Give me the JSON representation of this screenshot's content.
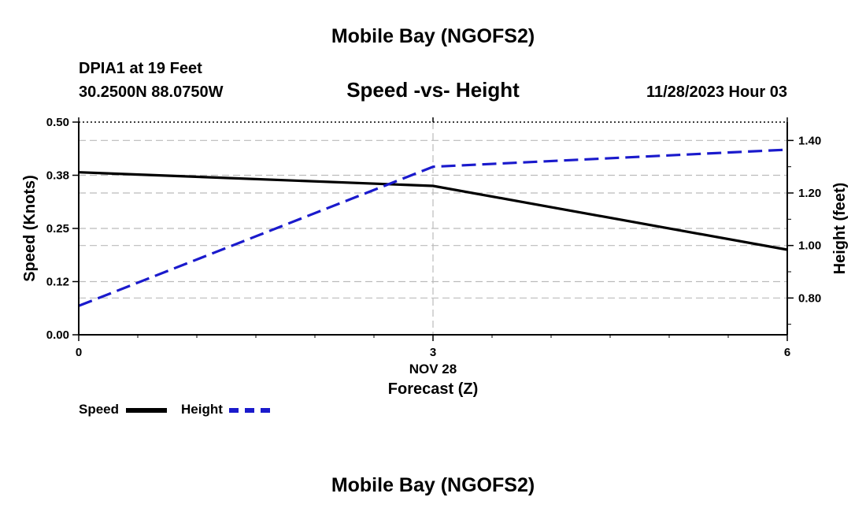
{
  "header": {
    "main_title": "Mobile Bay (NGOFS2)",
    "station": "DPIA1 at 19 Feet",
    "coords": "30.2500N  88.0750W",
    "subtitle": "Speed -vs- Height",
    "datetime": "11/28/2023 Hour 03"
  },
  "footer": {
    "main_title": "Mobile Bay (NGOFS2)"
  },
  "legend": {
    "speed_label": "Speed",
    "height_label": "Height"
  },
  "colors": {
    "speed": "#000000",
    "height": "#1a1acc",
    "grid": "#bbbbbb"
  },
  "chart_data": {
    "type": "line",
    "title": "Speed -vs- Height",
    "xlabel": "Forecast (Z)",
    "xdate_label": "NOV 28",
    "ylabel_left": "Speed (Knots)",
    "ylabel_right": "Height (feet)",
    "x": [
      0,
      3,
      6
    ],
    "xlim": [
      0,
      6
    ],
    "xticks": [
      "0",
      "3",
      "6"
    ],
    "ylim_left": [
      0,
      0.5
    ],
    "yticks_left": [
      "0.00",
      "0.12",
      "0.25",
      "0.38",
      "0.50"
    ],
    "yticks_left_values": [
      0,
      0.125,
      0.25,
      0.375,
      0.5
    ],
    "ylim_right": [
      0.66,
      1.47
    ],
    "yticks_right": [
      "0.80",
      "1.00",
      "1.20",
      "1.40"
    ],
    "yticks_right_values": [
      0.8,
      1.0,
      1.2,
      1.4
    ],
    "series": [
      {
        "name": "Speed",
        "axis": "left",
        "style": "solid",
        "values": [
          0.382,
          0.35,
          0.2
        ]
      },
      {
        "name": "Height",
        "axis": "right",
        "style": "dashed",
        "values": [
          0.77,
          1.3,
          1.365
        ]
      }
    ],
    "grid": true
  }
}
